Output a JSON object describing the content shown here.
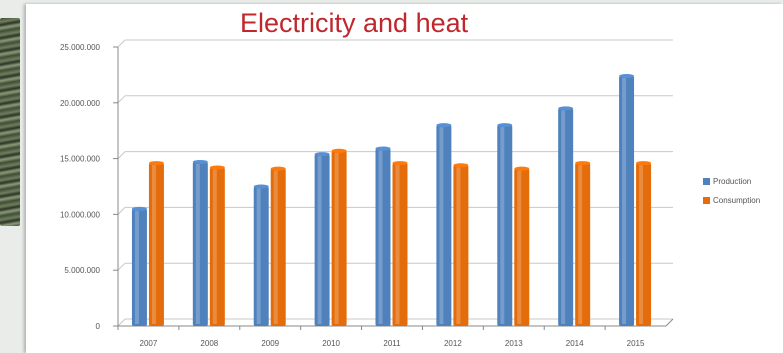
{
  "chart_data": {
    "type": "bar",
    "title": "Electricity and heat",
    "categories": [
      "2007",
      "2008",
      "2009",
      "2010",
      "2011",
      "2012",
      "2013",
      "2014",
      "2015"
    ],
    "series": [
      {
        "name": "Production",
        "color": "#4f81bd",
        "values": [
          10500000,
          14700000,
          12500000,
          15400000,
          15900000,
          18000000,
          18000000,
          19500000,
          22400000
        ]
      },
      {
        "name": "Consumption",
        "color": "#e46c0a",
        "values": [
          14600000,
          14200000,
          14100000,
          15700000,
          14600000,
          14400000,
          14100000,
          14600000,
          14600000
        ]
      }
    ],
    "y_ticks": [
      "0",
      "5.000.000",
      "10.000.000",
      "15.000.000",
      "20.000.000",
      "25.000.000"
    ],
    "ylim": [
      0,
      25000000
    ],
    "grid": true,
    "legend": "right"
  }
}
